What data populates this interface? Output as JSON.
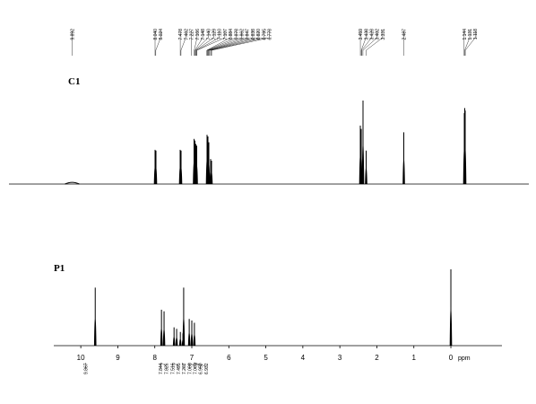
{
  "chart_data": [
    {
      "type": "spectrum",
      "title": "C1",
      "xlim": [
        11.3,
        -0.3
      ],
      "ylim": [
        0,
        100
      ],
      "x": [
        9.89,
        8.04,
        8.02,
        7.48,
        7.46,
        7.17,
        7.15,
        7.13,
        7.11,
        6.88,
        6.86,
        6.84,
        6.8,
        6.78,
        3.46,
        3.44,
        3.4,
        3.33,
        2.49,
        1.14,
        1.13,
        1.12
      ],
      "values": [
        2,
        41,
        40,
        41,
        40,
        54,
        52,
        48,
        46,
        59,
        57,
        50,
        30,
        28,
        70,
        66,
        100,
        40,
        62,
        85,
        91,
        88
      ],
      "peak_labels": [
        {
          "value": 9.892,
          "label": "9.892"
        },
        {
          "value": 8.04,
          "label": "8.040"
        },
        {
          "value": 8.024,
          "label": "8.024"
        },
        {
          "value": 7.478,
          "label": "7.478"
        },
        {
          "value": 7.462,
          "label": "7.462"
        },
        {
          "value": 7.227,
          "label": "7.227"
        },
        {
          "value": 7.166,
          "label": "7.166"
        },
        {
          "value": 7.148,
          "label": "7.148"
        },
        {
          "value": 7.14,
          "label": "7.140"
        },
        {
          "value": 7.129,
          "label": "7.129"
        },
        {
          "value": 7.11,
          "label": "7.110"
        },
        {
          "value": 7.107,
          "label": "7.107"
        },
        {
          "value": 6.884,
          "label": "6.884"
        },
        {
          "value": 6.878,
          "label": "6.878"
        },
        {
          "value": 6.862,
          "label": "6.862"
        },
        {
          "value": 6.847,
          "label": "6.847"
        },
        {
          "value": 6.838,
          "label": "6.838"
        },
        {
          "value": 6.82,
          "label": "6.820"
        },
        {
          "value": 6.795,
          "label": "6.795"
        },
        {
          "value": 6.778,
          "label": "6.778"
        },
        {
          "value": 3.459,
          "label": "3.459"
        },
        {
          "value": 3.438,
          "label": "3.438"
        },
        {
          "value": 3.428,
          "label": "3.428"
        },
        {
          "value": 3.402,
          "label": "3.402"
        },
        {
          "value": 3.331,
          "label": "3.331"
        },
        {
          "value": 2.487,
          "label": "2.487"
        },
        {
          "value": 1.144,
          "label": "1.144"
        },
        {
          "value": 1.131,
          "label": "1.131"
        },
        {
          "value": 1.118,
          "label": "1.118"
        }
      ]
    },
    {
      "type": "spectrum",
      "title": "P1",
      "x_label": "ppm",
      "xlim": [
        10.73,
        -1.38
      ],
      "ylim": [
        0,
        100
      ],
      "xticks": [
        10,
        9,
        8,
        7,
        6,
        5,
        4,
        3,
        2,
        1,
        0
      ],
      "x": [
        9.61,
        7.82,
        7.75,
        7.48,
        7.41,
        7.31,
        7.24,
        7.22,
        7.07,
        7.0,
        6.93,
        0
      ],
      "values": [
        76,
        47,
        45,
        24,
        22,
        18,
        16,
        76,
        35,
        33,
        30,
        100
      ],
      "peak_labels": [
        {
          "value": 9.867,
          "label": "9.867"
        },
        {
          "value": 7.844,
          "label": "7.844"
        },
        {
          "value": 7.826,
          "label": "7.826"
        },
        {
          "value": 7.516,
          "label": "7.516"
        },
        {
          "value": 7.495,
          "label": "7.495"
        },
        {
          "value": 7.262,
          "label": "7.262"
        },
        {
          "value": 7.086,
          "label": "7.086"
        },
        {
          "value": 7.068,
          "label": "7.068"
        },
        {
          "value": 6.95,
          "label": "6.950"
        },
        {
          "value": 6.932,
          "label": "6.932"
        }
      ]
    }
  ]
}
